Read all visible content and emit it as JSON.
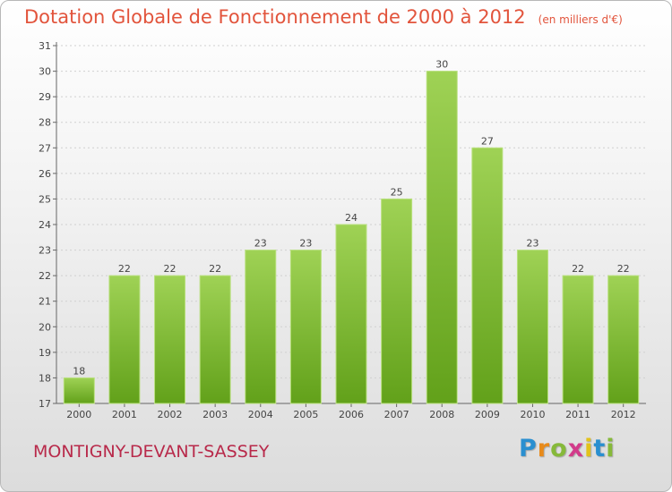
{
  "title": "Dotation Globale de Fonctionnement de 2000 à 2012",
  "subtitle": "(en milliers d'€)",
  "commune": "MONTIGNY-DEVANT-SASSEY",
  "logo": {
    "text": "Proxiti",
    "letters": [
      "P",
      "r",
      "o",
      "x",
      "i",
      "t",
      "i"
    ]
  },
  "colors": {
    "bar_top": "#9fd255",
    "bar_bottom": "#62a11a",
    "title": "#e2543c",
    "commune": "#b8294a"
  },
  "chart_data": {
    "type": "bar",
    "categories": [
      "2000",
      "2001",
      "2002",
      "2003",
      "2004",
      "2005",
      "2006",
      "2007",
      "2008",
      "2009",
      "2010",
      "2011",
      "2012"
    ],
    "values": [
      18,
      22,
      22,
      22,
      23,
      23,
      24,
      25,
      30,
      27,
      23,
      22,
      22
    ],
    "ylim": [
      17,
      31
    ],
    "yticks": [
      "17",
      "18",
      "19",
      "20",
      "21",
      "22",
      "23",
      "24",
      "25",
      "26",
      "27",
      "28",
      "29",
      "30",
      "31"
    ],
    "grid": true
  }
}
